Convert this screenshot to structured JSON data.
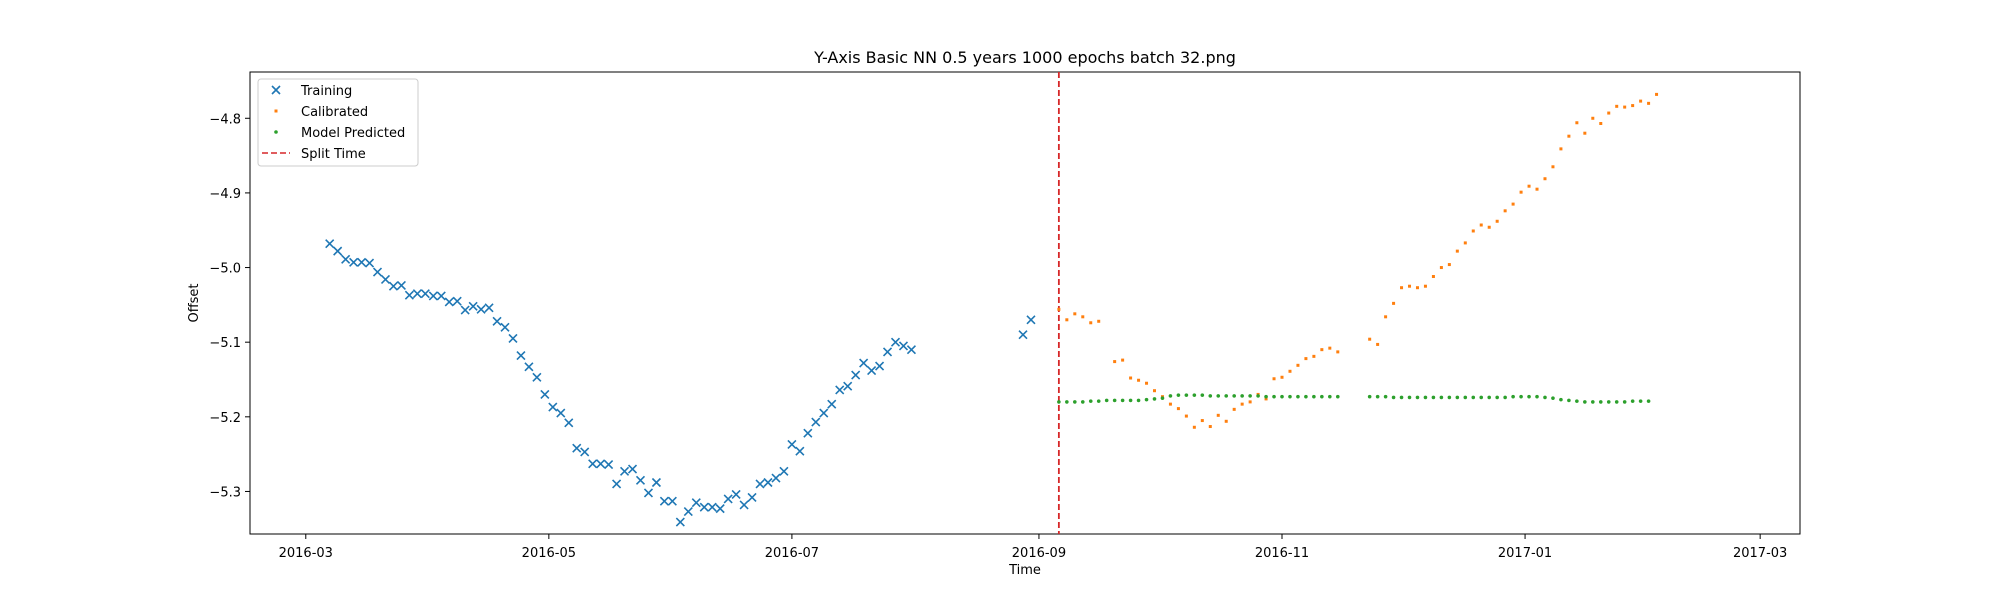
{
  "chart_data": {
    "type": "scatter",
    "title": "Y-Axis Basic NN 0.5 years 1000 epochs batch 32.png",
    "xlabel": "Time",
    "ylabel": "Offset",
    "xlim": [
      "2016-02-16",
      "2017-03-11"
    ],
    "ylim": [
      -5.357,
      -4.738
    ],
    "x_ticks": [
      "2016-03",
      "2016-05",
      "2016-07",
      "2016-09",
      "2016-11",
      "2017-01",
      "2017-03"
    ],
    "y_ticks": [
      -4.8,
      -4.9,
      -5.0,
      -5.1,
      -5.2,
      -5.3
    ],
    "y_tick_labels": [
      "−4.8",
      "−4.9",
      "−5.0",
      "−5.1",
      "−5.2",
      "−5.3"
    ],
    "grid": false,
    "legend_position": "top-left",
    "split_time": "2016-09-06",
    "series": [
      {
        "name": "Training",
        "marker": "x",
        "color": "#1f77b4",
        "points": [
          [
            "2016-03-07",
            -4.968
          ],
          [
            "2016-03-09",
            -4.978
          ],
          [
            "2016-03-11",
            -4.989
          ],
          [
            "2016-03-13",
            -4.993
          ],
          [
            "2016-03-15",
            -4.993
          ],
          [
            "2016-03-17",
            -4.994
          ],
          [
            "2016-03-19",
            -5.006
          ],
          [
            "2016-03-21",
            -5.016
          ],
          [
            "2016-03-23",
            -5.025
          ],
          [
            "2016-03-25",
            -5.024
          ],
          [
            "2016-03-27",
            -5.037
          ],
          [
            "2016-03-29",
            -5.035
          ],
          [
            "2016-03-31",
            -5.035
          ],
          [
            "2016-04-02",
            -5.038
          ],
          [
            "2016-04-04",
            -5.038
          ],
          [
            "2016-04-06",
            -5.046
          ],
          [
            "2016-04-08",
            -5.045
          ],
          [
            "2016-04-10",
            -5.057
          ],
          [
            "2016-04-12",
            -5.052
          ],
          [
            "2016-04-14",
            -5.056
          ],
          [
            "2016-04-16",
            -5.054
          ],
          [
            "2016-04-18",
            -5.072
          ],
          [
            "2016-04-20",
            -5.08
          ],
          [
            "2016-04-22",
            -5.095
          ],
          [
            "2016-04-24",
            -5.118
          ],
          [
            "2016-04-26",
            -5.133
          ],
          [
            "2016-04-28",
            -5.147
          ],
          [
            "2016-04-30",
            -5.17
          ],
          [
            "2016-05-02",
            -5.187
          ],
          [
            "2016-05-04",
            -5.195
          ],
          [
            "2016-05-06",
            -5.208
          ],
          [
            "2016-05-08",
            -5.242
          ],
          [
            "2016-05-10",
            -5.247
          ],
          [
            "2016-05-12",
            -5.263
          ],
          [
            "2016-05-14",
            -5.263
          ],
          [
            "2016-05-16",
            -5.264
          ],
          [
            "2016-05-18",
            -5.29
          ],
          [
            "2016-05-20",
            -5.273
          ],
          [
            "2016-05-22",
            -5.27
          ],
          [
            "2016-05-24",
            -5.285
          ],
          [
            "2016-05-26",
            -5.302
          ],
          [
            "2016-05-28",
            -5.288
          ],
          [
            "2016-05-30",
            -5.313
          ],
          [
            "2016-06-01",
            -5.313
          ],
          [
            "2016-06-03",
            -5.341
          ],
          [
            "2016-06-05",
            -5.327
          ],
          [
            "2016-06-07",
            -5.315
          ],
          [
            "2016-06-09",
            -5.321
          ],
          [
            "2016-06-11",
            -5.321
          ],
          [
            "2016-06-13",
            -5.323
          ],
          [
            "2016-06-15",
            -5.31
          ],
          [
            "2016-06-17",
            -5.304
          ],
          [
            "2016-06-19",
            -5.318
          ],
          [
            "2016-06-21",
            -5.308
          ],
          [
            "2016-06-23",
            -5.29
          ],
          [
            "2016-06-25",
            -5.288
          ],
          [
            "2016-06-27",
            -5.282
          ],
          [
            "2016-06-29",
            -5.273
          ],
          [
            "2016-07-01",
            -5.237
          ],
          [
            "2016-07-03",
            -5.246
          ],
          [
            "2016-07-05",
            -5.222
          ],
          [
            "2016-07-07",
            -5.207
          ],
          [
            "2016-07-09",
            -5.195
          ],
          [
            "2016-07-11",
            -5.183
          ],
          [
            "2016-07-13",
            -5.164
          ],
          [
            "2016-07-15",
            -5.159
          ],
          [
            "2016-07-17",
            -5.144
          ],
          [
            "2016-07-19",
            -5.128
          ],
          [
            "2016-07-21",
            -5.138
          ],
          [
            "2016-07-23",
            -5.132
          ],
          [
            "2016-07-25",
            -5.113
          ],
          [
            "2016-07-27",
            -5.1
          ],
          [
            "2016-07-29",
            -5.105
          ],
          [
            "2016-07-31",
            -5.11
          ],
          [
            "2016-08-28",
            -5.09
          ],
          [
            "2016-08-30",
            -5.07
          ]
        ]
      },
      {
        "name": "Calibrated",
        "marker": "s",
        "color": "#ff7f0e",
        "points": [
          [
            "2016-09-06",
            -5.056
          ],
          [
            "2016-09-08",
            -5.07
          ],
          [
            "2016-09-10",
            -5.062
          ],
          [
            "2016-09-12",
            -5.066
          ],
          [
            "2016-09-14",
            -5.074
          ],
          [
            "2016-09-16",
            -5.072
          ],
          [
            "2016-09-20",
            -5.126
          ],
          [
            "2016-09-22",
            -5.124
          ],
          [
            "2016-09-24",
            -5.148
          ],
          [
            "2016-09-26",
            -5.151
          ],
          [
            "2016-09-28",
            -5.155
          ],
          [
            "2016-09-30",
            -5.165
          ],
          [
            "2016-10-02",
            -5.173
          ],
          [
            "2016-10-04",
            -5.183
          ],
          [
            "2016-10-06",
            -5.189
          ],
          [
            "2016-10-08",
            -5.199
          ],
          [
            "2016-10-10",
            -5.214
          ],
          [
            "2016-10-12",
            -5.205
          ],
          [
            "2016-10-14",
            -5.213
          ],
          [
            "2016-10-16",
            -5.198
          ],
          [
            "2016-10-18",
            -5.206
          ],
          [
            "2016-10-20",
            -5.19
          ],
          [
            "2016-10-22",
            -5.183
          ],
          [
            "2016-10-24",
            -5.18
          ],
          [
            "2016-10-26",
            -5.17
          ],
          [
            "2016-10-28",
            -5.176
          ],
          [
            "2016-10-30",
            -5.149
          ],
          [
            "2016-11-01",
            -5.147
          ],
          [
            "2016-11-03",
            -5.139
          ],
          [
            "2016-11-05",
            -5.131
          ],
          [
            "2016-11-07",
            -5.122
          ],
          [
            "2016-11-09",
            -5.119
          ],
          [
            "2016-11-11",
            -5.11
          ],
          [
            "2016-11-13",
            -5.108
          ],
          [
            "2016-11-15",
            -5.113
          ],
          [
            "2016-11-23",
            -5.096
          ],
          [
            "2016-11-25",
            -5.103
          ],
          [
            "2016-11-27",
            -5.066
          ],
          [
            "2016-11-29",
            -5.048
          ],
          [
            "2016-12-01",
            -5.027
          ],
          [
            "2016-12-03",
            -5.025
          ],
          [
            "2016-12-05",
            -5.027
          ],
          [
            "2016-12-07",
            -5.025
          ],
          [
            "2016-12-09",
            -5.012
          ],
          [
            "2016-12-11",
            -5.0
          ],
          [
            "2016-12-13",
            -4.996
          ],
          [
            "2016-12-15",
            -4.978
          ],
          [
            "2016-12-17",
            -4.967
          ],
          [
            "2016-12-19",
            -4.951
          ],
          [
            "2016-12-21",
            -4.943
          ],
          [
            "2016-12-23",
            -4.946
          ],
          [
            "2016-12-25",
            -4.938
          ],
          [
            "2016-12-27",
            -4.924
          ],
          [
            "2016-12-29",
            -4.915
          ],
          [
            "2016-12-31",
            -4.899
          ],
          [
            "2017-01-02",
            -4.891
          ],
          [
            "2017-01-04",
            -4.895
          ],
          [
            "2017-01-06",
            -4.881
          ],
          [
            "2017-01-08",
            -4.865
          ],
          [
            "2017-01-10",
            -4.841
          ],
          [
            "2017-01-12",
            -4.824
          ],
          [
            "2017-01-14",
            -4.806
          ],
          [
            "2017-01-16",
            -4.82
          ],
          [
            "2017-01-18",
            -4.8
          ],
          [
            "2017-01-20",
            -4.807
          ],
          [
            "2017-01-22",
            -4.793
          ],
          [
            "2017-01-24",
            -4.784
          ],
          [
            "2017-01-26",
            -4.785
          ],
          [
            "2017-01-28",
            -4.783
          ],
          [
            "2017-01-30",
            -4.777
          ],
          [
            "2017-02-01",
            -4.78
          ],
          [
            "2017-02-03",
            -4.768
          ]
        ]
      },
      {
        "name": "Model Predicted",
        "marker": "o",
        "color": "#2ca02c",
        "points": [
          [
            "2016-09-06",
            -5.18
          ],
          [
            "2016-09-08",
            -5.18
          ],
          [
            "2016-09-10",
            -5.18
          ],
          [
            "2016-09-12",
            -5.18
          ],
          [
            "2016-09-14",
            -5.179
          ],
          [
            "2016-09-16",
            -5.179
          ],
          [
            "2016-09-18",
            -5.178
          ],
          [
            "2016-09-20",
            -5.178
          ],
          [
            "2016-09-22",
            -5.178
          ],
          [
            "2016-09-24",
            -5.178
          ],
          [
            "2016-09-26",
            -5.178
          ],
          [
            "2016-09-28",
            -5.177
          ],
          [
            "2016-09-30",
            -5.176
          ],
          [
            "2016-10-02",
            -5.175
          ],
          [
            "2016-10-04",
            -5.172
          ],
          [
            "2016-10-06",
            -5.171
          ],
          [
            "2016-10-08",
            -5.171
          ],
          [
            "2016-10-10",
            -5.171
          ],
          [
            "2016-10-12",
            -5.171
          ],
          [
            "2016-10-14",
            -5.172
          ],
          [
            "2016-10-16",
            -5.172
          ],
          [
            "2016-10-18",
            -5.172
          ],
          [
            "2016-10-20",
            -5.172
          ],
          [
            "2016-10-22",
            -5.172
          ],
          [
            "2016-10-24",
            -5.172
          ],
          [
            "2016-10-26",
            -5.172
          ],
          [
            "2016-10-28",
            -5.173
          ],
          [
            "2016-10-30",
            -5.173
          ],
          [
            "2016-11-01",
            -5.173
          ],
          [
            "2016-11-03",
            -5.173
          ],
          [
            "2016-11-05",
            -5.173
          ],
          [
            "2016-11-07",
            -5.173
          ],
          [
            "2016-11-09",
            -5.173
          ],
          [
            "2016-11-11",
            -5.173
          ],
          [
            "2016-11-13",
            -5.173
          ],
          [
            "2016-11-15",
            -5.173
          ],
          [
            "2016-11-23",
            -5.173
          ],
          [
            "2016-11-25",
            -5.173
          ],
          [
            "2016-11-27",
            -5.173
          ],
          [
            "2016-11-29",
            -5.174
          ],
          [
            "2016-12-01",
            -5.174
          ],
          [
            "2016-12-03",
            -5.174
          ],
          [
            "2016-12-05",
            -5.174
          ],
          [
            "2016-12-07",
            -5.174
          ],
          [
            "2016-12-09",
            -5.174
          ],
          [
            "2016-12-11",
            -5.174
          ],
          [
            "2016-12-13",
            -5.174
          ],
          [
            "2016-12-15",
            -5.174
          ],
          [
            "2016-12-17",
            -5.174
          ],
          [
            "2016-12-19",
            -5.174
          ],
          [
            "2016-12-21",
            -5.174
          ],
          [
            "2016-12-23",
            -5.174
          ],
          [
            "2016-12-25",
            -5.174
          ],
          [
            "2016-12-27",
            -5.174
          ],
          [
            "2016-12-29",
            -5.173
          ],
          [
            "2016-12-31",
            -5.173
          ],
          [
            "2017-01-02",
            -5.173
          ],
          [
            "2017-01-04",
            -5.173
          ],
          [
            "2017-01-06",
            -5.174
          ],
          [
            "2017-01-08",
            -5.175
          ],
          [
            "2017-01-10",
            -5.177
          ],
          [
            "2017-01-12",
            -5.178
          ],
          [
            "2017-01-14",
            -5.179
          ],
          [
            "2017-01-16",
            -5.18
          ],
          [
            "2017-01-18",
            -5.18
          ],
          [
            "2017-01-20",
            -5.18
          ],
          [
            "2017-01-22",
            -5.18
          ],
          [
            "2017-01-24",
            -5.18
          ],
          [
            "2017-01-26",
            -5.18
          ],
          [
            "2017-01-28",
            -5.179
          ],
          [
            "2017-01-30",
            -5.179
          ],
          [
            "2017-02-01",
            -5.179
          ]
        ]
      },
      {
        "name": "Split Time",
        "marker": "dashed-line",
        "color": "#d62728"
      }
    ]
  }
}
